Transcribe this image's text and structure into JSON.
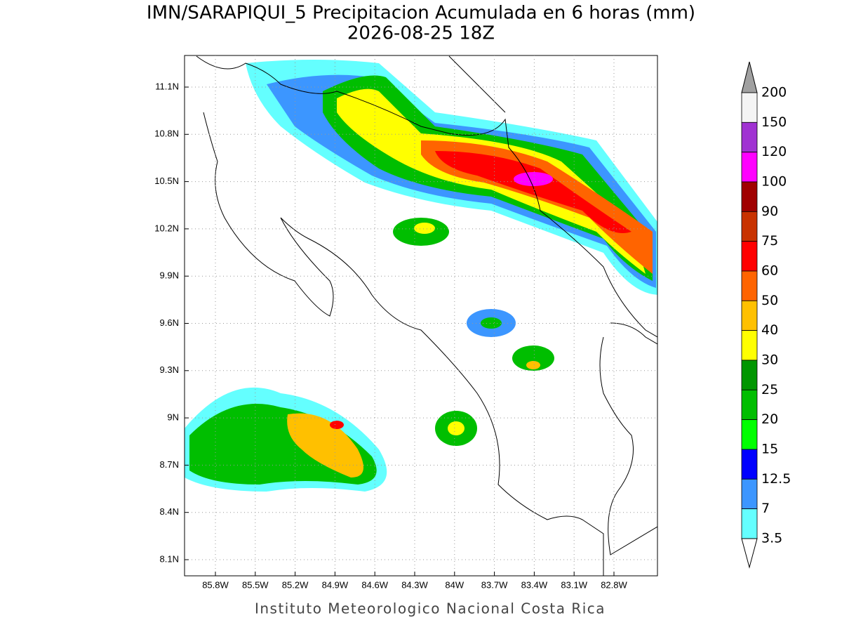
{
  "header": {
    "title": "IMN/SARAPIQUI_5 Precipitacion Acumulada en 6 horas (mm)",
    "subtitle": "2026-08-25 18Z"
  },
  "map": {
    "lat_labels": [
      "11.1N",
      "10.8N",
      "10.5N",
      "10.2N",
      "9.9N",
      "9.6N",
      "9.3N",
      "9N",
      "8.7N",
      "8.4N",
      "8.1N"
    ],
    "lon_labels": [
      "85.8W",
      "85.5W",
      "85.2W",
      "84.9W",
      "84.6W",
      "84.3W",
      "84W",
      "83.7W",
      "83.4W",
      "83.1W",
      "82.8W"
    ]
  },
  "colorbar": {
    "labels": [
      "200",
      "150",
      "120",
      "100",
      "90",
      "75",
      "60",
      "50",
      "40",
      "30",
      "25",
      "20",
      "15",
      "12.5",
      "7",
      "3.5"
    ],
    "colors": [
      "#f4f4f4",
      "#a032d2",
      "#ff00ff",
      "#a00000",
      "#c83200",
      "#ff0000",
      "#ff6400",
      "#ffc000",
      "#ffff00",
      "#009600",
      "#00be00",
      "#00ff00",
      "#0000ff",
      "#3c96ff",
      "#64ffff"
    ],
    "over_color": "#a0a0a0",
    "under_color": "#ffffff"
  },
  "footer": "Instituto Meteorologico Nacional Costa Rica"
}
